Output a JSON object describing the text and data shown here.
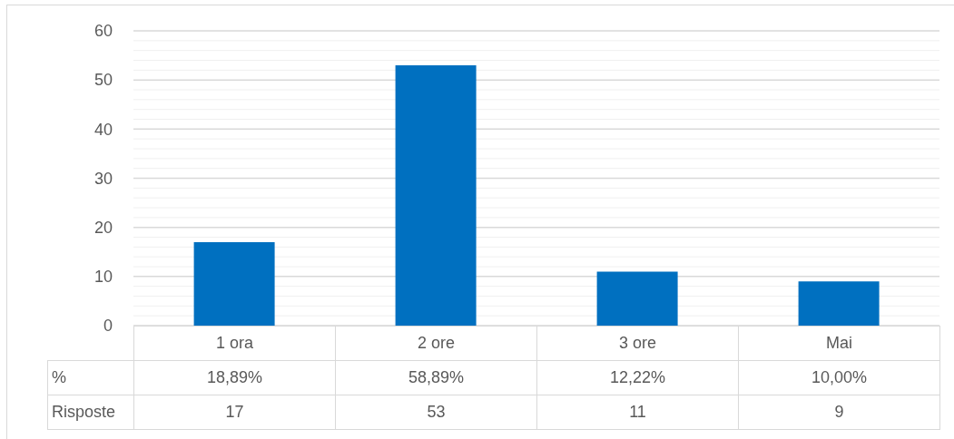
{
  "chart_data": {
    "type": "bar",
    "categories": [
      "1 ora",
      "2 ore",
      "3 ore",
      "Mai"
    ],
    "series": [
      {
        "name": "Risposte",
        "color": "#0070c0",
        "values": [
          17,
          53,
          11,
          9
        ]
      }
    ],
    "annotations": [
      "%",
      "18,89%",
      "58,89%",
      "12,22%",
      "10,00%"
    ],
    "data_labels": true,
    "ylim": [
      0,
      60
    ],
    "yticks": [
      0,
      {
        "value": 2,
        "label": null
      },
      {
        "value": 4,
        "label": null
      },
      {
        "value": 6,
        "label": null
      },
      {
        "value": 8,
        "label": null
      },
      10,
      {
        "value": 12,
        "label": null
      },
      {
        "value": 14,
        "label": null
      },
      {
        "value": 16,
        "label": null
      },
      {
        "value": 18,
        "label": null
      },
      20,
      {
        "value": 22,
        "label": null
      },
      {
        "value": 24,
        "label": null
      },
      {
        "value": 26,
        "label": null
      },
      {
        "value": 28,
        "label": null
      },
      30,
      {
        "value": 32,
        "label": null
      },
      {
        "value": 34,
        "label": null
      },
      {
        "value": 36,
        "label": null
      },
      {
        "value": 38,
        "label": null
      },
      40,
      {
        "value": 42,
        "label": null
      },
      {
        "value": 44,
        "label": null
      },
      {
        "value": 46,
        "label": null
      },
      {
        "value": 48,
        "label": null
      },
      50,
      {
        "value": 52,
        "label": null
      },
      {
        "value": 54,
        "label": null
      },
      {
        "value": 56,
        "label": null
      },
      {
        "value": 58,
        "label": null
      },
      60
    ],
    "grid": true
  }
}
